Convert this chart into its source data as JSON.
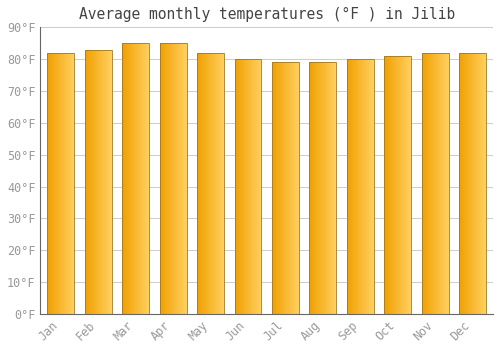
{
  "title": "Average monthly temperatures (°F ) in Jilib",
  "months": [
    "Jan",
    "Feb",
    "Mar",
    "Apr",
    "May",
    "Jun",
    "Jul",
    "Aug",
    "Sep",
    "Oct",
    "Nov",
    "Dec"
  ],
  "values": [
    82,
    83,
    85,
    85,
    82,
    80,
    79,
    79,
    80,
    81,
    82,
    82
  ],
  "bar_color_left": "#F0A000",
  "bar_color_right": "#FFD060",
  "bar_edge_color": "#A07820",
  "background_color": "#FFFFFF",
  "grid_color": "#CCCCCC",
  "ylim": [
    0,
    90
  ],
  "yticks": [
    0,
    10,
    20,
    30,
    40,
    50,
    60,
    70,
    80,
    90
  ],
  "ytick_labels": [
    "0°F",
    "10°F",
    "20°F",
    "30°F",
    "40°F",
    "50°F",
    "60°F",
    "70°F",
    "80°F",
    "90°F"
  ],
  "title_fontsize": 10.5,
  "tick_fontsize": 8.5,
  "font_color": "#999999"
}
